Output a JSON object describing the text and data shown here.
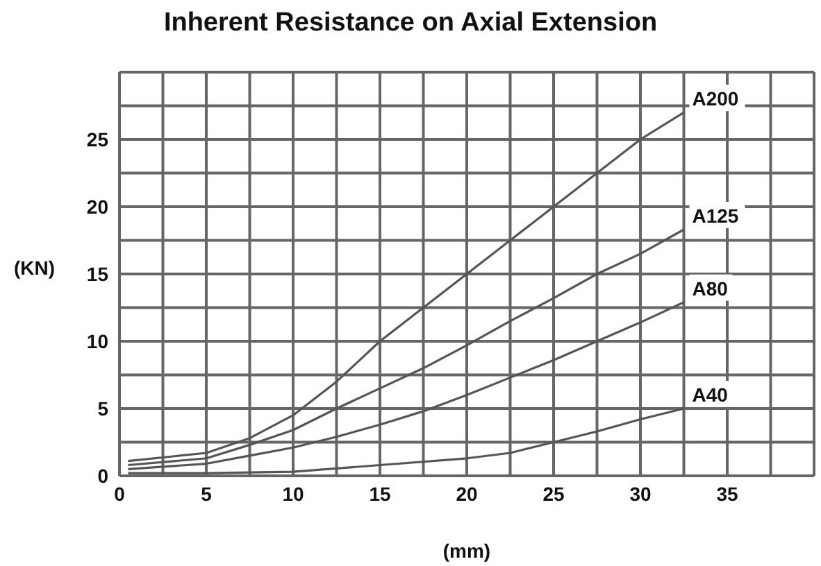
{
  "chart_data": {
    "type": "line",
    "title": "Inherent Resistance on Axial Extension",
    "xlabel": "(mm)",
    "ylabel": "(KN)",
    "xlim": [
      0,
      40
    ],
    "xticks": [
      0,
      {
        "value": 2.5,
        "label": null
      },
      5,
      {
        "value": 7.5,
        "label": null
      },
      10,
      {
        "value": 12.5,
        "label": null
      },
      15,
      {
        "value": 17.5,
        "label": null
      },
      20,
      {
        "value": 22.5,
        "label": null
      },
      25,
      {
        "value": 27.5,
        "label": null
      },
      30,
      {
        "value": 32.5,
        "label": null
      },
      35,
      {
        "value": 37.5,
        "label": null
      },
      {
        "value": 40,
        "label": null
      }
    ],
    "ylim": [
      0,
      30
    ],
    "yticks": [
      0,
      {
        "value": 2.5,
        "label": null
      },
      5,
      {
        "value": 7.5,
        "label": null
      },
      10,
      {
        "value": 12.5,
        "label": null
      },
      15,
      {
        "value": 17.5,
        "label": null
      },
      20,
      {
        "value": 22.5,
        "label": null
      },
      25,
      {
        "value": 27.5,
        "label": null
      },
      {
        "value": 30,
        "label": null
      }
    ],
    "grid": true,
    "marker": "none",
    "line_style": "solid",
    "series": [
      {
        "name": "A200",
        "color": "#555555",
        "x": [
          0.5,
          5,
          7.5,
          10,
          12.5,
          15,
          17.5,
          20,
          22.5,
          25,
          27.5,
          30,
          32.5
        ],
        "values": [
          1.1,
          1.7,
          2.8,
          4.5,
          7,
          10,
          12.5,
          15,
          17.5,
          20,
          22.5,
          25,
          27
        ]
      },
      {
        "name": "A125",
        "color": "#555555",
        "x": [
          0.5,
          5,
          7.5,
          10,
          12.5,
          15,
          17.5,
          20,
          22.5,
          25,
          27.5,
          30,
          32.5
        ],
        "values": [
          0.8,
          1.3,
          2.3,
          3.4,
          5,
          6.5,
          8,
          9.7,
          11.5,
          13.2,
          15,
          16.5,
          18.3
        ]
      },
      {
        "name": "A80",
        "color": "#555555",
        "x": [
          0.5,
          5,
          7.5,
          10,
          12.5,
          15,
          17.5,
          20,
          22.5,
          25,
          27.5,
          30,
          32.5
        ],
        "values": [
          0.5,
          0.9,
          1.5,
          2.1,
          2.9,
          3.8,
          4.8,
          6,
          7.3,
          8.6,
          10,
          11.4,
          12.9
        ]
      },
      {
        "name": "A40",
        "color": "#555555",
        "x": [
          0.5,
          5,
          10,
          15,
          20,
          22.5,
          25,
          27.5,
          30,
          32.5
        ],
        "values": [
          0.2,
          0.2,
          0.3,
          0.8,
          1.3,
          1.7,
          2.5,
          3.3,
          4.2,
          5
        ]
      }
    ]
  }
}
